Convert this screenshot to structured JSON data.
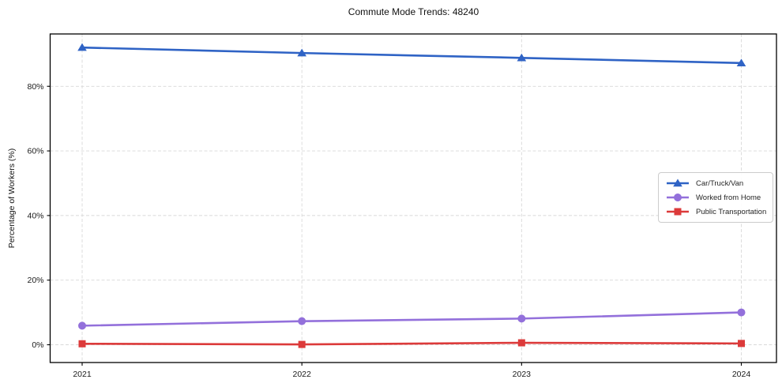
{
  "title": "Commute Mode Trends: 48240",
  "colors": {
    "car_truck_van": "#2f63c5",
    "worked_from_home": "#9370db",
    "public_transportation": "#dc3a3a",
    "gridline": "#d9d9d9",
    "axis": "#000000",
    "text": "#1a1a1a",
    "legend_border": "#cccccc",
    "background": "#ffffff"
  },
  "chart_data": {
    "type": "line",
    "title": "Commute Mode Trends: 48240",
    "xlabel": "",
    "ylabel": "Percentage of Workers (%)",
    "x": [
      2021,
      2022,
      2023,
      2024
    ],
    "x_tick_labels": [
      "2021",
      "2022",
      "2023",
      "2024"
    ],
    "y_ticks": [
      0,
      20,
      40,
      60,
      80
    ],
    "y_tick_labels": [
      "0%",
      "20%",
      "40%",
      "60%",
      "80%"
    ],
    "ylim": [
      -5.5,
      96.2
    ],
    "grid": true,
    "grid_style": "dashed",
    "legend_position": "center-right",
    "series": [
      {
        "name": "Car/Truck/Van",
        "color": "#2f63c5",
        "marker": "triangle",
        "values": [
          92.0,
          90.3,
          88.8,
          87.2
        ]
      },
      {
        "name": "Worked from Home",
        "color": "#9370db",
        "marker": "circle",
        "values": [
          5.9,
          7.3,
          8.1,
          10.0
        ]
      },
      {
        "name": "Public Transportation",
        "color": "#dc3a3a",
        "marker": "square",
        "values": [
          0.3,
          0.1,
          0.6,
          0.4
        ]
      }
    ]
  }
}
